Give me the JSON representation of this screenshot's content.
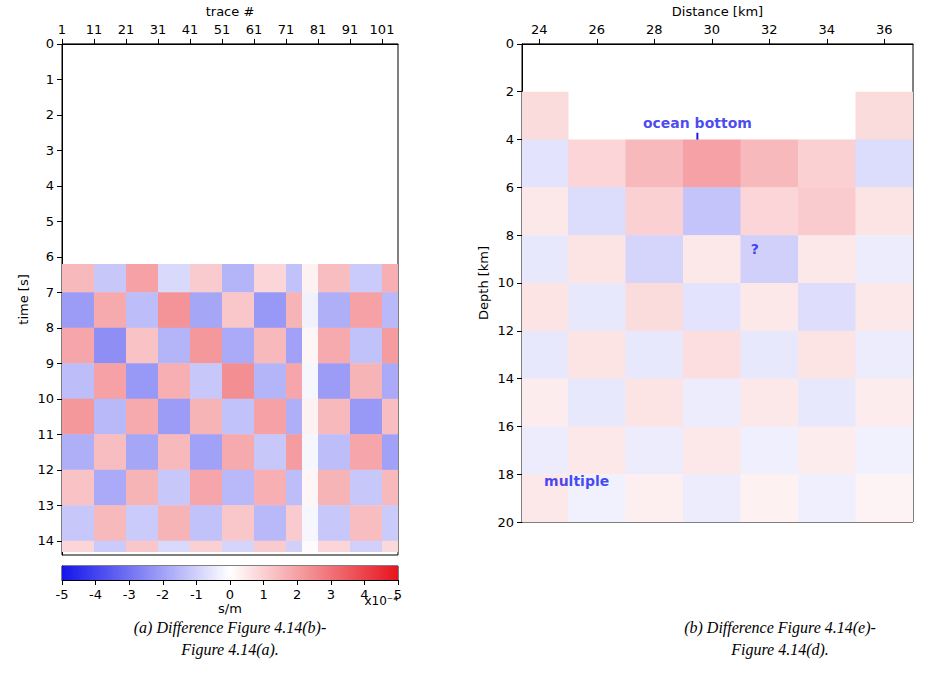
{
  "chart_data": [
    {
      "type": "heatmap",
      "x_label": "trace #",
      "y_label": "time [s]",
      "caption": "(a) Difference Figure 4.14(b)-Figure 4.14(a).",
      "xlim": [
        1,
        106
      ],
      "xticks": [
        1,
        11,
        21,
        31,
        41,
        51,
        61,
        71,
        81,
        91,
        101
      ],
      "ylim": [
        0,
        14.4
      ],
      "yticks": [
        0,
        1,
        2,
        3,
        4,
        5,
        6,
        7,
        8,
        9,
        10,
        11,
        12,
        13,
        14
      ],
      "x_edges": [
        1,
        11,
        21,
        31,
        41,
        51,
        61,
        71,
        76,
        81,
        91,
        101,
        106
      ],
      "y_edges": [
        6.2,
        7,
        8,
        9,
        10,
        11,
        12,
        13,
        14,
        14.3
      ],
      "cells": [
        [
          0.00015,
          -0.00012,
          0.0002,
          -8e-05,
          0.00011,
          -0.00016,
          9e-05,
          -0.00013,
          3e-05,
          0.00014,
          -0.00011,
          0.00017
        ],
        [
          -0.00021,
          0.00018,
          -0.00014,
          0.00023,
          -0.00019,
          0.00012,
          -0.00022,
          0.00016,
          -3e-05,
          -0.00017,
          0.0002,
          -0.00015
        ],
        [
          0.00019,
          -0.00024,
          0.00013,
          -0.00016,
          0.00022,
          -0.00018,
          0.00015,
          -0.0002,
          2e-05,
          0.00018,
          -0.00013,
          0.00021
        ],
        [
          -0.00014,
          0.0002,
          -0.00022,
          0.00017,
          -0.00012,
          0.00024,
          -0.00016,
          0.00019,
          -2e-05,
          -0.00021,
          0.00016,
          -0.00018
        ],
        [
          0.00022,
          -0.00015,
          0.00018,
          -0.00021,
          0.00016,
          -0.00013,
          0.0002,
          -0.00017,
          3e-05,
          0.00015,
          -0.00022,
          0.00014
        ],
        [
          -0.00017,
          0.00014,
          -0.00019,
          0.00015,
          -0.0002,
          0.00018,
          -0.00012,
          0.00021,
          -2e-05,
          -0.00014,
          0.00019,
          -0.0002
        ],
        [
          0.00013,
          -0.00018,
          0.00016,
          -0.00012,
          0.00019,
          -0.00015,
          0.00017,
          -0.00014,
          2e-05,
          0.00016,
          -0.00012,
          0.00015
        ],
        [
          -0.00012,
          0.00015,
          -0.00011,
          0.00016,
          -0.00013,
          0.00012,
          -0.00015,
          0.00011,
          -2e-05,
          -0.00012,
          0.00014,
          -0.00011
        ],
        [
          9e-05,
          -0.00011,
          0.00012,
          -8e-05,
          0.0001,
          -9e-05,
          0.00011,
          -0.0001,
          1e-05,
          9e-05,
          -0.0001,
          8e-05
        ]
      ],
      "colorbar": {
        "label": "s/m",
        "multiplier": "x10⁻⁴",
        "range": [
          -0.0005,
          0.0005
        ],
        "ticks": [
          {
            "value": -0.0005,
            "label": "-5"
          },
          {
            "value": -0.0004,
            "label": "-4"
          },
          {
            "value": -0.0003,
            "label": "-3"
          },
          {
            "value": -0.0002,
            "label": "-2"
          },
          {
            "value": -0.0001,
            "label": "-1"
          },
          {
            "value": 0,
            "label": "0"
          },
          {
            "value": 0.0001,
            "label": "1"
          },
          {
            "value": 0.0002,
            "label": "2"
          },
          {
            "value": 0.0003,
            "label": "3"
          },
          {
            "value": 0.0004,
            "label": "4"
          },
          {
            "value": 0.0005,
            "label": "5"
          }
        ]
      }
    },
    {
      "type": "heatmap",
      "x_label": "Distance [km]",
      "y_label": "Depth [km]",
      "caption": "(b) Difference Figure 4.14(e)-Figure 4.14(d).",
      "xlim": [
        23.4,
        37
      ],
      "xticks": [
        24,
        26,
        28,
        30,
        32,
        34,
        36
      ],
      "ylim": [
        0,
        20
      ],
      "yticks": [
        0,
        2,
        4,
        6,
        8,
        10,
        12,
        14,
        16,
        18,
        20
      ],
      "x_edges": [
        23.4,
        25,
        27,
        29,
        31,
        33,
        35,
        37
      ],
      "y_edges": [
        0,
        2,
        4,
        6,
        8,
        10,
        12,
        14,
        16,
        18,
        20
      ],
      "color_range": [
        -1,
        1
      ],
      "cells": [
        [
          null,
          null,
          null,
          null,
          null,
          null,
          null
        ],
        [
          0.15,
          null,
          null,
          null,
          null,
          null,
          0.15
        ],
        [
          -0.12,
          0.18,
          0.3,
          0.4,
          0.3,
          0.2,
          -0.15
        ],
        [
          0.1,
          -0.15,
          0.2,
          -0.25,
          0.18,
          0.22,
          0.12
        ],
        [
          -0.1,
          0.12,
          -0.18,
          0.1,
          -0.2,
          0.1,
          -0.08
        ],
        [
          0.12,
          -0.1,
          0.15,
          -0.12,
          0.1,
          -0.14,
          0.1
        ],
        [
          -0.1,
          0.12,
          -0.1,
          0.14,
          -0.1,
          0.12,
          -0.08
        ],
        [
          0.08,
          -0.1,
          0.12,
          -0.08,
          0.1,
          -0.1,
          0.08
        ],
        [
          -0.08,
          0.1,
          -0.08,
          0.1,
          -0.07,
          0.08,
          -0.06
        ],
        [
          0.1,
          -0.06,
          0.07,
          -0.08,
          0.06,
          -0.07,
          0.05
        ]
      ],
      "annotations": [
        {
          "text": "ocean bottom",
          "x": 29.5,
          "y": 3.3
        },
        {
          "text": "?",
          "x": 31.5,
          "y": 8.6
        },
        {
          "text": "multiple",
          "x": 25.3,
          "y": 18.3
        }
      ]
    }
  ]
}
